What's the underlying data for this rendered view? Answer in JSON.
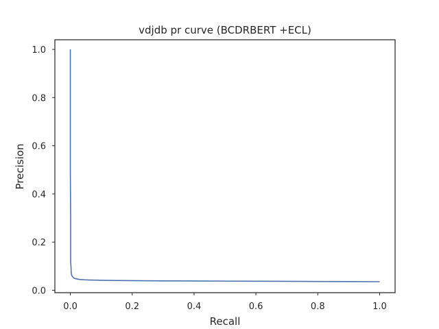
{
  "chart_data": {
    "type": "line",
    "title": "vdjdb pr curve (BCDRBERT +ECL)",
    "xlabel": "Recall",
    "ylabel": "Precision",
    "xlim": [
      -0.05,
      1.05
    ],
    "ylim": [
      -0.01,
      1.04
    ],
    "xticks": [
      0.0,
      0.2,
      0.4,
      0.6,
      0.8,
      1.0
    ],
    "xtick_labels": [
      "0.0",
      "0.2",
      "0.4",
      "0.6",
      "0.8",
      "1.0"
    ],
    "yticks": [
      0.0,
      0.2,
      0.4,
      0.6,
      0.8,
      1.0
    ],
    "ytick_labels": [
      "0.0",
      "0.2",
      "0.4",
      "0.6",
      "0.8",
      "1.0"
    ],
    "grid": false,
    "color": "#4c72b0",
    "series": [
      {
        "x": [
          0.0,
          0.0,
          0.0,
          0.001,
          0.001,
          0.002,
          0.003,
          0.005,
          0.008,
          0.012,
          0.02,
          0.03,
          0.05,
          0.08,
          0.12,
          0.2,
          0.3,
          0.4,
          0.5,
          0.6,
          0.7,
          0.8,
          0.9,
          1.0
        ],
        "y": [
          1.0,
          0.83,
          0.5,
          0.3,
          0.12,
          0.1,
          0.07,
          0.06,
          0.055,
          0.05,
          0.047,
          0.045,
          0.043,
          0.042,
          0.041,
          0.04,
          0.039,
          0.0385,
          0.038,
          0.0375,
          0.037,
          0.0365,
          0.036,
          0.0355
        ]
      }
    ]
  }
}
